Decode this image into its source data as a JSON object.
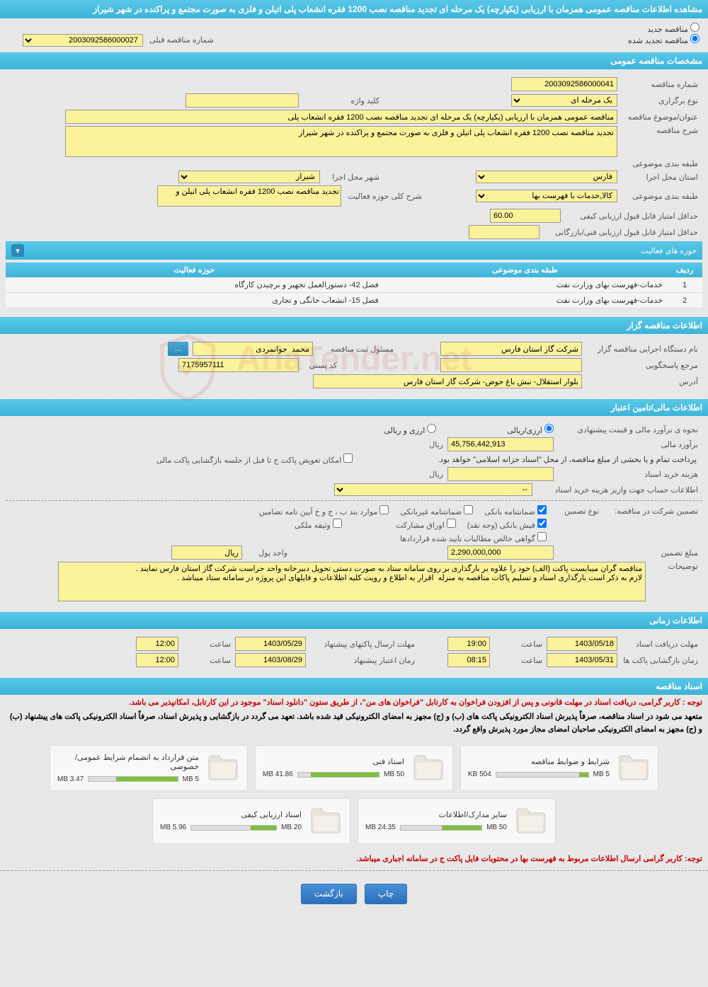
{
  "page_title": "مشاهده اطلاعات مناقصه عمومی همزمان با ارزیابی (یکپارچه) یک مرحله ای تجدید مناقصه نصب 1200 فقره انشعاب پلی اتیلن و فلزی به صورت مجتمع و پراکنده در شهر شیراز",
  "top_radio": {
    "new_label": "مناقصه جدید",
    "renewed_label": "مناقصه تجدید شده",
    "prev_number_label": "شماره مناقصه قبلی",
    "prev_number_value": "2003092586000027"
  },
  "sections": {
    "general": "مشخصات مناقصه عمومی",
    "agency": "اطلاعات مناقصه گزار",
    "financial": "اطلاعات مالی/تامین اعتبار",
    "timing": "اطلاعات زمانی",
    "documents": "اسناد مناقصه"
  },
  "general": {
    "tender_no_label": "شماره مناقصه",
    "tender_no": "2003092586000041",
    "type_label": "نوع برگزاری",
    "type_value": "یک مرحله ای",
    "keyword_label": "کلید واژه",
    "keyword": "",
    "title_label": "عنوان/موضوع مناقصه",
    "title_value": "مناقصه عمومی همزمان با ارزیابی (یکپارچه) یک مرحله ای تجدید مناقصه نصب 1200 فقره انشعاب پلی",
    "desc_label": "شرح مناقصه",
    "desc_value": "تجدید مناقصه نصب 1200 فقره انشعاب پلی اتیلن و فلزی به صورت مجتمع و پراکنده در شهر شیراز",
    "subject_class_label": "طبقه بندی موضوعی",
    "province_label": "استان محل اجرا",
    "province_value": "فارس",
    "city_label": "شهر محل اجرا",
    "city_value": "شیراز",
    "scope_label": "طبقه بندی موضوعی",
    "scope_value": "کالا,خدمات با فهرست بها",
    "activity_desc_label": "شرح کلی حوزه فعالیت",
    "activity_desc_value": "تجدید مناقصه نصب 1200 فقره انشعاب پلی اتیلن و",
    "min_quality_score_label": "حداقل امتیاز قابل قبول ارزیابی کیفی",
    "min_quality_score": "60.00",
    "min_tech_score_label": "حداقل امتیاز قابل قبول ارزیابی فنی/بازرگانی",
    "min_tech_score": ""
  },
  "activity": {
    "header": "حوزه های فعالیت",
    "cols": {
      "row": "ردیف",
      "class": "طبقه بندی موضوعی",
      "scope": "حوزه فعالیت"
    },
    "rows": [
      {
        "n": "1",
        "class": "خدمات-فهرست بهای وزارت نفت",
        "scope": "فصل 42- دستورالعمل تجهیز و برچیدن کارگاه"
      },
      {
        "n": "2",
        "class": "خدمات-فهرست بهای وزارت نفت",
        "scope": "فصل 15- انشعاب خانگی و تجاری"
      }
    ]
  },
  "agency": {
    "org_label": "نام دستگاه اجرایی مناقصه گزار",
    "org_value": "شرکت گاز استان فارس",
    "responsible_label": "مسئول ثبت مناقصه",
    "responsible_value": "محمد  جوانمردی",
    "authority_label": "مرجع پاسخگویی",
    "authority_value": "",
    "postal_label": "کد پستی",
    "postal_value": "7175957111",
    "address_label": "آدرس",
    "address_value": "بلوار استقلال- نبش باغ حوض- شرکت گاز استان فارس"
  },
  "financial": {
    "price_method_label": "نحوه ی برآورد مالی و قیمت پیشنهادی",
    "opt_arzi_riali": "ارزی/ریالی",
    "opt_arzi_o_riali": "ارزی و ریالی",
    "estimate_label": "برآورد مالی",
    "estimate_value": "45,756,442,913",
    "rial": "ریال",
    "treasury_note": "پرداخت تمام و یا بخشی از مبلغ مناقصه، از محل \"اسناد خزانه اسلامی\" خواهد بود.",
    "swap_c_label": "امکان تعویض پاکت ج تا قبل از جلسه بازگشایی پاکت مالی",
    "doc_cost_label": "هزینه خرید اسناد",
    "doc_cost_value": "",
    "account_label": "اطلاعات حساب جهت واریز هزینه خرید اسناد",
    "account_value": "--",
    "guarantee_header": "تضمین شرکت در مناقصه:",
    "guarantee_type_label": "نوع تضمین",
    "g_bank": "ضمانتنامه بانکی",
    "g_nonbank": "ضمانتنامه غیربانکی",
    "g_bonds": "موارد بند ب ، ج و خ آیین نامه تضامین",
    "g_cash": "فیش بانکی (وجه نقد)",
    "g_shares": "اوراق مشارکت",
    "g_property": "وثیقه ملکی",
    "g_receivables": "گواهی خالص مطالبات تایید شده قراردادها",
    "guarantee_amount_label": "مبلغ تضمین",
    "guarantee_amount": "2,290,000,000",
    "currency_label": "واحد پول",
    "currency_value": "ریال",
    "notes_label": "توضیحات",
    "notes_value": "مناقصه گران میبایست پاکت (الف) خود را علاوه بر بارگذاری بر روی سامانه ستاد به صورت دستی تحویل دبیرخانه واحد حراست شرکت گاز استان فارس نمایند .\nلازم به ذکر است بارگذاری اسناد و تسلیم پاکات مناقصه به منزله  اقرار به اطلاع و رویت کلیه اطلاعات و فایلهای این پروژه در سامانه ستاد میباشد ."
  },
  "timing": {
    "doc_deadline_label": "مهلت دریافت اسناد",
    "doc_deadline_date": "1403/05/18",
    "time_label": "ساعت",
    "doc_deadline_time": "19:00",
    "proposal_deadline_label": "مهلت ارسال پاکتهای پیشنهاد",
    "proposal_deadline_date": "1403/05/29",
    "proposal_deadline_time": "12:00",
    "opening_label": "زمان بازگشایی پاکت ها",
    "opening_date": "1403/05/31",
    "opening_time": "08:15",
    "validity_label": "زمان اعتبار پیشنهاد",
    "validity_date": "1403/08/29",
    "validity_time": "12:00"
  },
  "documents": {
    "note1": "توجه : کاربر گرامی، دریافت اسناد در مهلت قانونی و پس از افزودن فراخوان به کارتابل \"فراخوان های من\"، از طریق ستون \"دانلود اسناد\" موجود در این کارتابل، امکانپذیر می باشد.",
    "note2": "متعهد می شود در اسناد مناقصه، صرفاً پذیرش اسناد الکترونیکی پاکت های (ب) و (ج) مجهز به امضای الکترونیکی قید شده باشد. تعهد می گردد در بازگشایی و پذیرش اسناد، صرفاً اسناد الکترونیکی پاکت های پیشنهاد (ب) و (ج) مجهز به امضای الکترونیکی صاحبان امضای مجاز مورد پذیرش واقع گردد.",
    "note3": "توجه: کاربر گرامی ارسال اطلاعات مربوط به فهرست بها در محتویات فایل پاکت ج در سامانه اجباری میباشد.",
    "files": [
      {
        "title": "شرایط و ضوابط مناقصه",
        "used": "504 KB",
        "max": "5 MB",
        "pct": 10
      },
      {
        "title": "اسناد فنی",
        "used": "41.86 MB",
        "max": "50 MB",
        "pct": 84
      },
      {
        "title": "متن قرارداد به انضمام شرایط عمومی/خصوصی",
        "used": "3.47 MB",
        "max": "5 MB",
        "pct": 69
      },
      {
        "title": "سایر مدارک/اطلاعات",
        "used": "24.35 MB",
        "max": "50 MB",
        "pct": 49
      },
      {
        "title": "اسناد ارزیابی کیفی",
        "used": "5.96 MB",
        "max": "20 MB",
        "pct": 30
      }
    ]
  },
  "buttons": {
    "print": "چاپ",
    "back": "بازگشت"
  },
  "watermark": "AriaTender.net",
  "colors": {
    "header_bg": "#4cc0e0",
    "yellow": "#fcf29a",
    "progress": "#7ec040",
    "btn": "#3a80c8"
  }
}
